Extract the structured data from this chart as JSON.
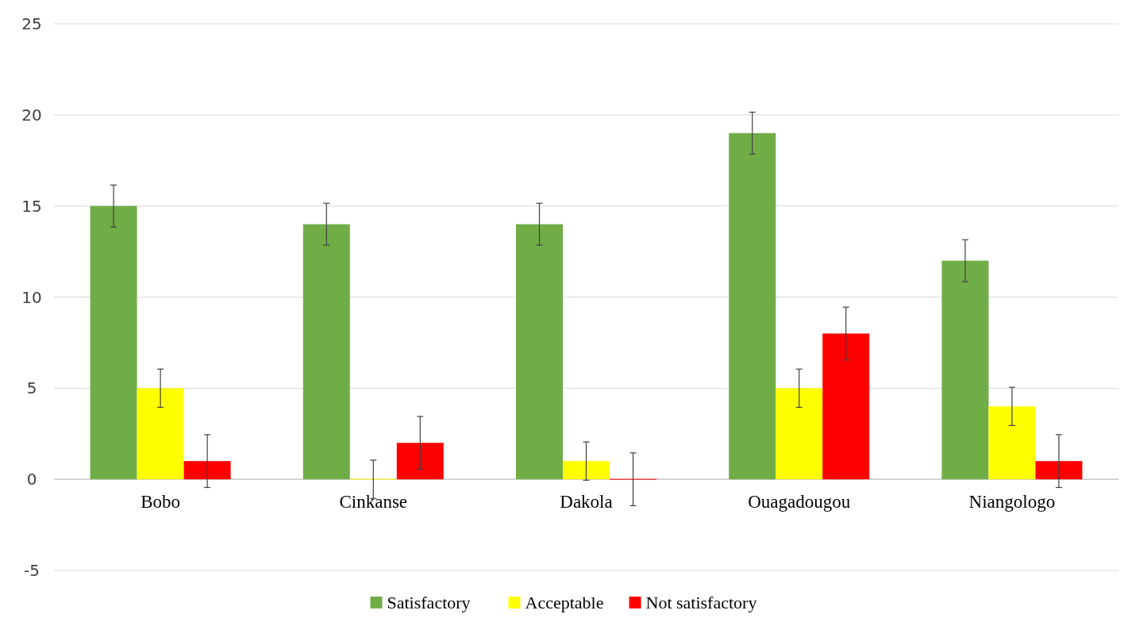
{
  "chart_data": {
    "type": "bar",
    "categories": [
      "Bobo",
      "Cinkanse",
      "Dakola",
      "Ouagadougou",
      "Niangologo"
    ],
    "series": [
      {
        "name": "Satisfactory",
        "color": "#70ad47",
        "values": [
          15,
          14,
          14,
          19,
          12
        ],
        "errors": [
          1.15,
          1.15,
          1.15,
          1.15,
          1.15
        ]
      },
      {
        "name": "Acceptable",
        "color": "#ffff00",
        "values": [
          5,
          0,
          1,
          5,
          4
        ],
        "errors": [
          1.05,
          1.05,
          1.05,
          1.05,
          1.05
        ]
      },
      {
        "name": "Not satisfactory",
        "color": "#ff0000",
        "values": [
          1,
          2,
          0,
          8,
          1
        ],
        "errors": [
          1.45,
          1.45,
          1.45,
          1.45,
          1.45
        ]
      }
    ],
    "ylim": [
      -5,
      25
    ],
    "yticks": [
      -5,
      0,
      5,
      10,
      15,
      20,
      25
    ],
    "grid": "y",
    "legend": "bottom"
  }
}
